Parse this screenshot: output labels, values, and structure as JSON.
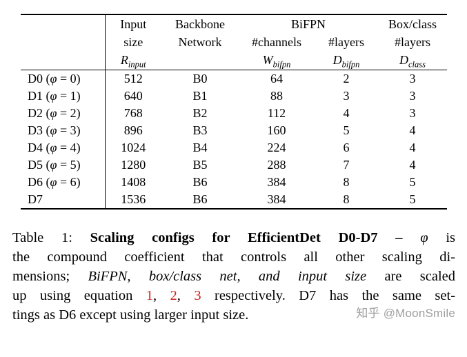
{
  "colors": {
    "link_red": "#cc2222",
    "watermark_gray": "#9e9e9e"
  },
  "table": {
    "header": {
      "input": {
        "line1": "Input",
        "line2": "size",
        "sym": "R",
        "sub": "input"
      },
      "backbone": {
        "line1": "Backbone",
        "line2": "Network"
      },
      "bifpn_group": "BiFPN",
      "channels": {
        "line1": "#channels",
        "sym": "W",
        "sub": "bifpn"
      },
      "bifpn_layers": {
        "line1": "#layers",
        "sym": "D",
        "sub": "bifpn"
      },
      "box_class": {
        "line1": "Box/class",
        "line2": "#layers",
        "sym": "D",
        "sub": "class"
      }
    },
    "label_format": {
      "open": " (",
      "phi": "φ",
      "eq": " = ",
      "close": ")"
    },
    "rows": [
      {
        "name": "D0",
        "phi": "0",
        "input_size": "512",
        "backbone": "B0",
        "channels": "64",
        "bifpn_layers": "2",
        "class_layers": "3"
      },
      {
        "name": "D1",
        "phi": "1",
        "input_size": "640",
        "backbone": "B1",
        "channels": "88",
        "bifpn_layers": "3",
        "class_layers": "3"
      },
      {
        "name": "D2",
        "phi": "2",
        "input_size": "768",
        "backbone": "B2",
        "channels": "112",
        "bifpn_layers": "4",
        "class_layers": "3"
      },
      {
        "name": "D3",
        "phi": "3",
        "input_size": "896",
        "backbone": "B3",
        "channels": "160",
        "bifpn_layers": "5",
        "class_layers": "4"
      },
      {
        "name": "D4",
        "phi": "4",
        "input_size": "1024",
        "backbone": "B4",
        "channels": "224",
        "bifpn_layers": "6",
        "class_layers": "4"
      },
      {
        "name": "D5",
        "phi": "5",
        "input_size": "1280",
        "backbone": "B5",
        "channels": "288",
        "bifpn_layers": "7",
        "class_layers": "4"
      },
      {
        "name": "D6",
        "phi": "6",
        "input_size": "1408",
        "backbone": "B6",
        "channels": "384",
        "bifpn_layers": "8",
        "class_layers": "5"
      },
      {
        "name": "D7",
        "phi": null,
        "input_size": "1536",
        "backbone": "B6",
        "channels": "384",
        "bifpn_layers": "8",
        "class_layers": "5"
      }
    ]
  },
  "caption": {
    "lines": [
      {
        "segments": [
          {
            "style": "normal",
            "text": "Table 1: "
          },
          {
            "style": "bold",
            "text": "Scaling configs for EfficientDet D0-D7 –  "
          },
          {
            "style": "math",
            "text": "φ"
          },
          {
            "style": "normal",
            "text": " is"
          }
        ]
      },
      {
        "segments": [
          {
            "style": "normal",
            "text": "the compound coefficient that controls all other scaling di-"
          }
        ]
      },
      {
        "segments": [
          {
            "style": "normal",
            "text": "mensions; "
          },
          {
            "style": "italic",
            "text": "BiFPN, box/class net, and input size"
          },
          {
            "style": "normal",
            "text": " are scaled"
          }
        ]
      },
      {
        "segments": [
          {
            "style": "normal",
            "text": "up using equation "
          },
          {
            "style": "link",
            "text": "1"
          },
          {
            "style": "normal",
            "text": ", "
          },
          {
            "style": "link",
            "text": "2"
          },
          {
            "style": "normal",
            "text": ", "
          },
          {
            "style": "link",
            "text": "3"
          },
          {
            "style": "normal",
            "text": " respectively. D7 has the same set-"
          }
        ]
      },
      {
        "segments": [
          {
            "style": "normal",
            "text": "tings as D6 except using larger input size."
          }
        ]
      }
    ]
  },
  "watermark": {
    "brand": "知乎",
    "handle": "@MoonSmile"
  }
}
